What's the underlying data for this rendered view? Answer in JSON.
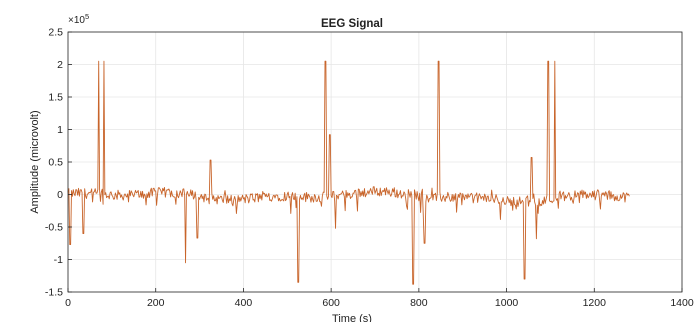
{
  "chart_data": {
    "type": "line",
    "title": "EEG Signal",
    "xlabel": "Time (s)",
    "ylabel": "Amplitude (microvolt)",
    "y_exponent_label": "×10",
    "y_exponent_power": "5",
    "xlim": [
      0,
      1400
    ],
    "ylim": [
      -1.5,
      2.5
    ],
    "x_ticks": [
      0,
      200,
      400,
      600,
      800,
      1000,
      1200,
      1400
    ],
    "y_ticks": [
      -1.5,
      -1,
      -0.5,
      0,
      0.5,
      1,
      1.5,
      2,
      2.5
    ],
    "grid": true,
    "line_color": "#c8642a",
    "spikes": [
      {
        "x": 70,
        "y": 2.05
      },
      {
        "x": 82,
        "y": 2.05
      },
      {
        "x": 325,
        "y": 0.53
      },
      {
        "x": 587,
        "y": 2.05
      },
      {
        "x": 597,
        "y": 0.92
      },
      {
        "x": 845,
        "y": 2.05
      },
      {
        "x": 1057,
        "y": 0.57
      },
      {
        "x": 1095,
        "y": 2.05
      },
      {
        "x": 1110,
        "y": 2.05
      },
      {
        "x": 5,
        "y": -0.77
      },
      {
        "x": 35,
        "y": -0.6
      },
      {
        "x": 268,
        "y": -1.05
      },
      {
        "x": 295,
        "y": -0.67
      },
      {
        "x": 525,
        "y": -1.35
      },
      {
        "x": 610,
        "y": -0.52
      },
      {
        "x": 787,
        "y": -1.38
      },
      {
        "x": 813,
        "y": -0.75
      },
      {
        "x": 1041,
        "y": -1.3
      },
      {
        "x": 1068,
        "y": -0.68
      }
    ]
  }
}
